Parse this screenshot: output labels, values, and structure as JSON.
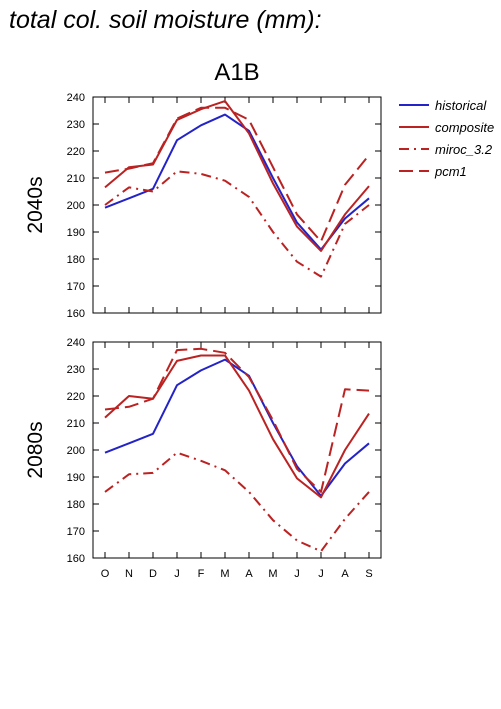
{
  "page": {
    "title": "total col. soil moisture (mm):"
  },
  "colors": {
    "historical": "#2323c8",
    "scenario": "#bb2222",
    "axis": "#000000"
  },
  "chart_data": {
    "type": "line",
    "title": "A1B",
    "categories": [
      "O",
      "N",
      "D",
      "J",
      "F",
      "M",
      "A",
      "M",
      "J",
      "J",
      "A",
      "S"
    ],
    "legend": {
      "position": "right",
      "entries": [
        {
          "label": "historical",
          "style": "solid",
          "color": "#2323c8"
        },
        {
          "label": "composite",
          "style": "solid",
          "color": "#bb2222"
        },
        {
          "label": "miroc_3.2",
          "style": "dashdot",
          "color": "#bb2222"
        },
        {
          "label": "pcm1",
          "style": "dashed",
          "color": "#bb2222"
        }
      ]
    },
    "panels": [
      {
        "ylabel": "2040s",
        "ylim": [
          160,
          240
        ],
        "yticks": [
          160,
          170,
          180,
          190,
          200,
          210,
          220,
          230,
          240
        ],
        "series": [
          {
            "name": "historical",
            "style": "solid",
            "color": "#2323c8",
            "values": [
              199,
              202.5,
              206,
              224,
              229.5,
              233.5,
              227.5,
              210,
              193.5,
              183.5,
              195,
              202.5
            ]
          },
          {
            "name": "composite",
            "style": "solid",
            "color": "#bb2222",
            "values": [
              206.5,
              214,
              215,
              231.5,
              235.5,
              238.5,
              226.5,
              208,
              192,
              183,
              196.5,
              207
            ]
          },
          {
            "name": "miroc_3.2",
            "style": "dashdot",
            "color": "#bb2222",
            "values": [
              200,
              206.5,
              205,
              212.5,
              211.5,
              209,
              203,
              190,
              179,
              173.5,
              193,
              200
            ]
          },
          {
            "name": "pcm1",
            "style": "dashed",
            "color": "#bb2222",
            "values": [
              212,
              213.5,
              215.5,
              232,
              236,
              236,
              231.5,
              214,
              196.5,
              186.5,
              207.5,
              218.5
            ]
          }
        ]
      },
      {
        "ylabel": "2080s",
        "ylim": [
          160,
          240
        ],
        "yticks": [
          160,
          170,
          180,
          190,
          200,
          210,
          220,
          230,
          240
        ],
        "series": [
          {
            "name": "historical",
            "style": "solid",
            "color": "#2323c8",
            "values": [
              199,
              202.5,
              206,
              224,
              229.5,
              233.5,
              227.5,
              210,
              194,
              183,
              195,
              202.5
            ]
          },
          {
            "name": "composite",
            "style": "solid",
            "color": "#bb2222",
            "values": [
              212,
              220,
              219,
              233,
              235,
              235,
              222,
              204,
              189.5,
              182.5,
              200,
              213.5
            ]
          },
          {
            "name": "miroc_3.2",
            "style": "dashdot",
            "color": "#bb2222",
            "values": [
              184.5,
              191,
              191.5,
              199,
              196,
              192.5,
              184.5,
              174,
              166.5,
              162.5,
              174.5,
              184.5
            ]
          },
          {
            "name": "pcm1",
            "style": "dashed",
            "color": "#bb2222",
            "values": [
              215,
              216,
              219,
              237,
              237.5,
              236,
              227,
              211,
              193,
              184.5,
              222.5,
              222
            ]
          }
        ]
      }
    ]
  }
}
